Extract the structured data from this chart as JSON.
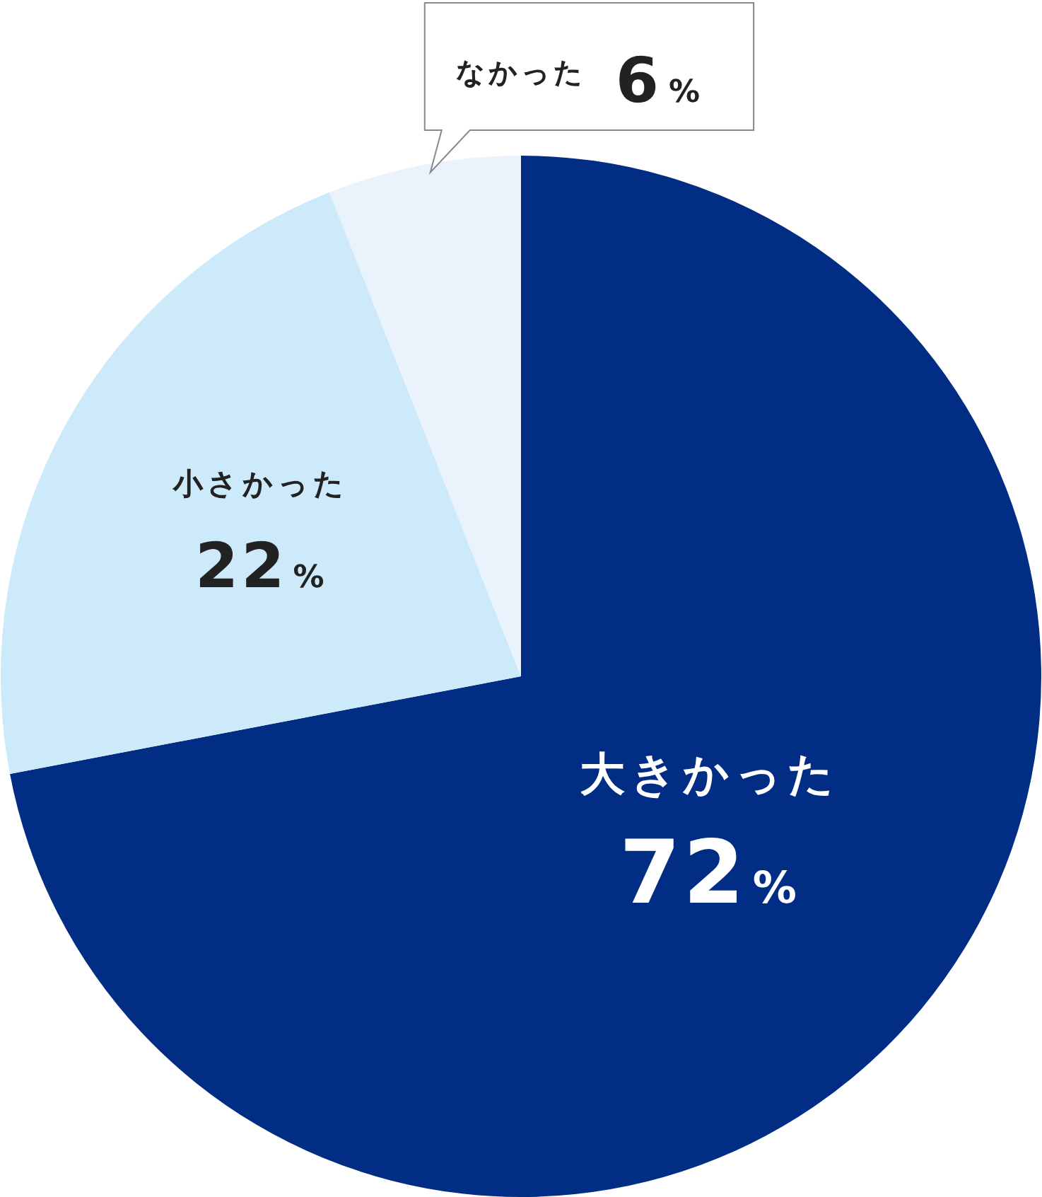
{
  "chart_data": {
    "type": "pie",
    "categories": [
      "大きかった",
      "小さかった",
      "なかった"
    ],
    "values": [
      72,
      22,
      6
    ],
    "colors": [
      "#012e84",
      "#cdeafb",
      "#eaf3fc"
    ],
    "value_labels": [
      "72%",
      "22%",
      "6%"
    ],
    "legend": false
  }
}
